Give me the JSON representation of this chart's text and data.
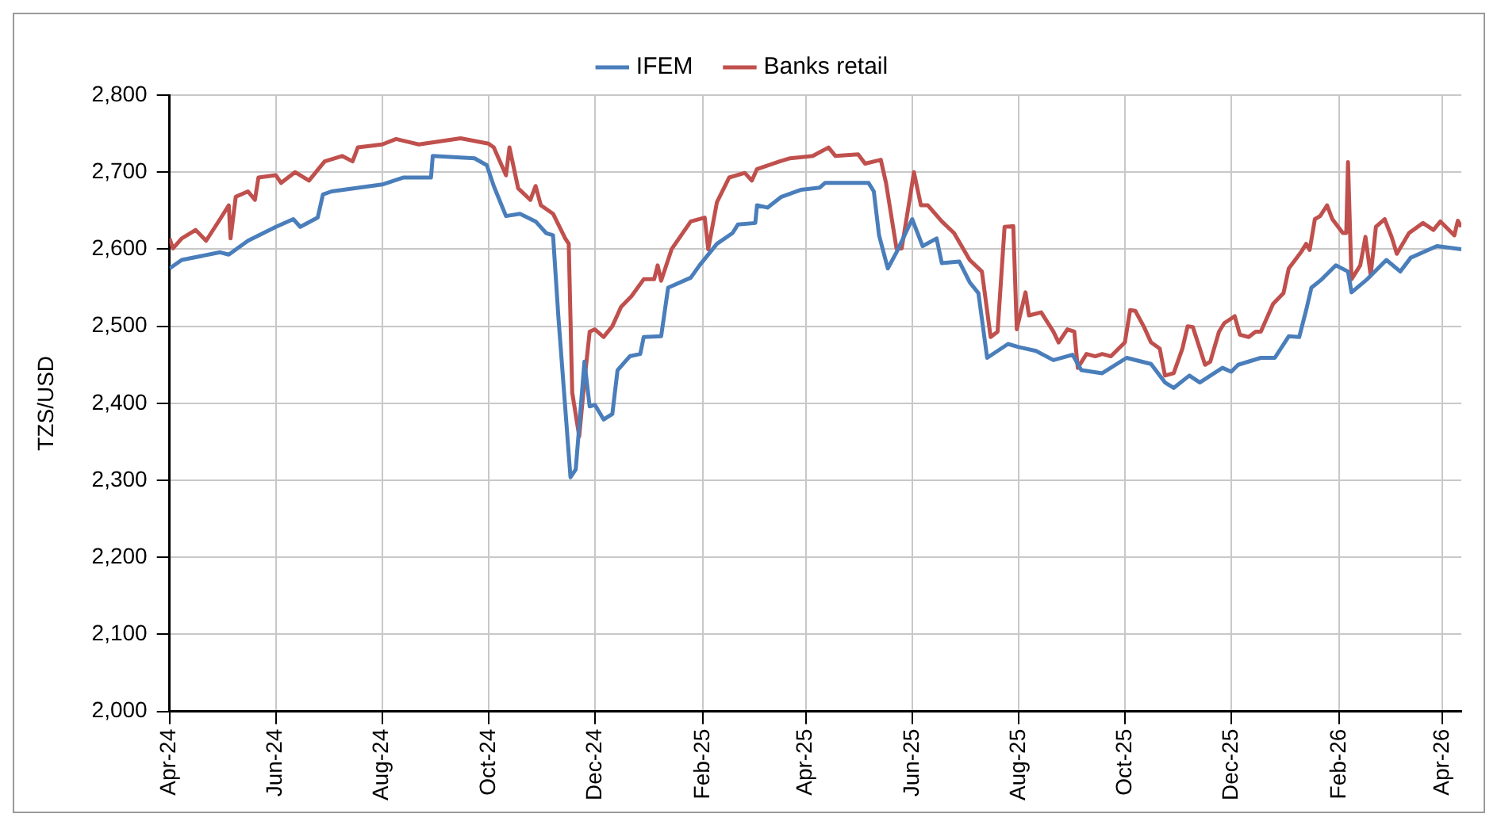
{
  "chart_data": {
    "type": "line",
    "ylabel": "TZS/USD",
    "legend": "top",
    "grid": true,
    "marker": "none",
    "line_style": "solid",
    "xlim": [
      "2024-04-01",
      "2026-04-12"
    ],
    "xticks": [
      {
        "value": "2024-04-01",
        "label": "Apr-24"
      },
      {
        "value": "2024-06-01",
        "label": "Jun-24"
      },
      {
        "value": "2024-08-01",
        "label": "Aug-24"
      },
      {
        "value": "2024-10-01",
        "label": "Oct-24"
      },
      {
        "value": "2024-12-01",
        "label": "Dec-24"
      },
      {
        "value": "2025-02-01",
        "label": "Feb-25"
      },
      {
        "value": "2025-04-01",
        "label": "Apr-25"
      },
      {
        "value": "2025-06-01",
        "label": "Jun-25"
      },
      {
        "value": "2025-08-01",
        "label": "Aug-25"
      },
      {
        "value": "2025-10-01",
        "label": "Oct-25"
      },
      {
        "value": "2025-12-01",
        "label": "Dec-25"
      },
      {
        "value": "2026-02-01",
        "label": "Feb-26"
      },
      {
        "value": "2026-04-01",
        "label": "Apr-26"
      }
    ],
    "ylim": [
      2000,
      2800
    ],
    "yticks": [
      {
        "value": 2000,
        "label": "2,000"
      },
      {
        "value": 2100,
        "label": "2,100"
      },
      {
        "value": 2200,
        "label": "2,200"
      },
      {
        "value": 2300,
        "label": "2,300"
      },
      {
        "value": 2400,
        "label": "2,400"
      },
      {
        "value": 2500,
        "label": "2,500"
      },
      {
        "value": 2600,
        "label": "2,600"
      },
      {
        "value": 2700,
        "label": "2,700"
      },
      {
        "value": 2800,
        "label": "2,800"
      }
    ],
    "series": [
      {
        "name": "IFEM",
        "color": "#4a7ebb",
        "x": [
          "2024-04-01",
          "2024-04-08",
          "2024-04-30",
          "2024-05-05",
          "2024-05-16",
          "2024-06-01",
          "2024-06-11",
          "2024-06-15",
          "2024-06-25",
          "2024-06-28",
          "2024-07-03",
          "2024-08-01",
          "2024-08-13",
          "2024-08-29",
          "2024-08-30",
          "2024-09-23",
          "2024-09-30",
          "2024-10-04",
          "2024-10-11",
          "2024-10-19",
          "2024-10-28",
          "2024-11-03",
          "2024-11-07",
          "2024-11-10",
          "2024-11-17",
          "2024-11-20",
          "2024-11-25",
          "2024-11-28",
          "2024-12-01",
          "2024-12-06",
          "2024-12-11",
          "2024-12-14",
          "2024-12-21",
          "2024-12-27",
          "2024-12-29",
          "2025-01-08",
          "2025-01-12",
          "2025-01-25",
          "2025-01-30",
          "2025-02-09",
          "2025-02-18",
          "2025-02-21",
          "2025-03-03",
          "2025-03-04",
          "2025-03-10",
          "2025-03-18",
          "2025-03-29",
          "2025-04-09",
          "2025-04-12",
          "2025-05-07",
          "2025-05-10",
          "2025-05-13",
          "2025-05-18",
          "2025-05-23",
          "2025-06-01",
          "2025-06-07",
          "2025-06-15",
          "2025-06-18",
          "2025-06-28",
          "2025-07-04",
          "2025-07-09",
          "2025-07-14",
          "2025-07-26",
          "2025-08-01",
          "2025-08-11",
          "2025-08-21",
          "2025-09-01",
          "2025-09-06",
          "2025-09-18",
          "2025-10-02",
          "2025-10-16",
          "2025-10-24",
          "2025-10-29",
          "2025-11-07",
          "2025-11-13",
          "2025-11-26",
          "2025-12-01",
          "2025-12-05",
          "2025-12-18",
          "2025-12-26",
          "2026-01-03",
          "2026-01-09",
          "2026-01-13",
          "2026-01-16",
          "2026-01-22",
          "2026-01-30",
          "2026-02-06",
          "2026-02-08",
          "2026-02-17",
          "2026-02-28",
          "2026-03-08",
          "2026-03-14",
          "2026-03-29",
          "2026-04-12"
        ],
        "values": [
          2575,
          2586,
          2596,
          2593,
          2611,
          2629,
          2639,
          2629,
          2641,
          2671,
          2675,
          2684,
          2693,
          2693,
          2721,
          2718,
          2709,
          2682,
          2643,
          2646,
          2636,
          2621,
          2618,
          2514,
          2304,
          2314,
          2454,
          2396,
          2398,
          2379,
          2386,
          2443,
          2461,
          2464,
          2486,
          2487,
          2550,
          2563,
          2579,
          2607,
          2621,
          2632,
          2634,
          2657,
          2654,
          2668,
          2677,
          2680,
          2686,
          2686,
          2675,
          2618,
          2575,
          2596,
          2639,
          2604,
          2614,
          2582,
          2584,
          2557,
          2543,
          2459,
          2477,
          2473,
          2468,
          2456,
          2463,
          2443,
          2439,
          2459,
          2451,
          2427,
          2420,
          2436,
          2427,
          2446,
          2441,
          2450,
          2459,
          2459,
          2487,
          2486,
          2521,
          2550,
          2561,
          2579,
          2571,
          2544,
          2561,
          2586,
          2571,
          2589,
          2604,
          2600
        ]
      },
      {
        "name": "Banks retail",
        "color": "#c0504d",
        "x": [
          "2024-04-01",
          "2024-04-03",
          "2024-04-08",
          "2024-04-16",
          "2024-04-22",
          "2024-04-30",
          "2024-05-05",
          "2024-05-06",
          "2024-05-09",
          "2024-05-16",
          "2024-05-20",
          "2024-05-22",
          "2024-06-01",
          "2024-06-04",
          "2024-06-12",
          "2024-06-20",
          "2024-06-29",
          "2024-07-09",
          "2024-07-15",
          "2024-07-18",
          "2024-08-01",
          "2024-08-09",
          "2024-08-22",
          "2024-09-15",
          "2024-10-01",
          "2024-10-04",
          "2024-10-11",
          "2024-10-13",
          "2024-10-18",
          "2024-10-25",
          "2024-10-28",
          "2024-10-31",
          "2024-11-07",
          "2024-11-14",
          "2024-11-16",
          "2024-11-18",
          "2024-11-22",
          "2024-11-25",
          "2024-11-28",
          "2024-12-01",
          "2024-12-06",
          "2024-12-11",
          "2024-12-16",
          "2024-12-22",
          "2024-12-29",
          "2025-01-04",
          "2025-01-06",
          "2025-01-08",
          "2025-01-14",
          "2025-01-25",
          "2025-02-02",
          "2025-02-04",
          "2025-02-09",
          "2025-02-16",
          "2025-02-25",
          "2025-03-01",
          "2025-03-04",
          "2025-03-17",
          "2025-03-23",
          "2025-04-05",
          "2025-04-14",
          "2025-04-18",
          "2025-05-01",
          "2025-05-05",
          "2025-05-14",
          "2025-05-17",
          "2025-05-23",
          "2025-05-26",
          "2025-05-31",
          "2025-06-02",
          "2025-06-06",
          "2025-06-10",
          "2025-06-18",
          "2025-06-25",
          "2025-07-04",
          "2025-07-11",
          "2025-07-16",
          "2025-07-20",
          "2025-07-24",
          "2025-07-29",
          "2025-07-31",
          "2025-08-05",
          "2025-08-07",
          "2025-08-14",
          "2025-08-21",
          "2025-08-24",
          "2025-08-29",
          "2025-09-02",
          "2025-09-04",
          "2025-09-09",
          "2025-09-14",
          "2025-09-18",
          "2025-09-23",
          "2025-10-01",
          "2025-10-04",
          "2025-10-07",
          "2025-10-12",
          "2025-10-16",
          "2025-10-21",
          "2025-10-24",
          "2025-10-29",
          "2025-11-03",
          "2025-11-06",
          "2025-11-09",
          "2025-11-16",
          "2025-11-19",
          "2025-11-24",
          "2025-11-27",
          "2025-12-03",
          "2025-12-06",
          "2025-12-11",
          "2025-12-15",
          "2025-12-18",
          "2025-12-25",
          "2025-12-31",
          "2026-01-03",
          "2026-01-10",
          "2026-01-13",
          "2026-01-15",
          "2026-01-18",
          "2026-01-21",
          "2026-01-25",
          "2026-01-28",
          "2026-02-03",
          "2026-02-05",
          "2026-02-06",
          "2026-02-08",
          "2026-02-13",
          "2026-02-16",
          "2026-02-19",
          "2026-02-22",
          "2026-02-27",
          "2026-03-03",
          "2026-03-06",
          "2026-03-13",
          "2026-03-21",
          "2026-03-27",
          "2026-03-31",
          "2026-04-08",
          "2026-04-10",
          "2026-04-12"
        ],
        "values": [
          2614,
          2601,
          2614,
          2625,
          2611,
          2639,
          2657,
          2614,
          2668,
          2675,
          2664,
          2693,
          2696,
          2686,
          2700,
          2689,
          2714,
          2721,
          2714,
          2732,
          2736,
          2743,
          2736,
          2744,
          2737,
          2732,
          2696,
          2732,
          2679,
          2664,
          2682,
          2657,
          2646,
          2614,
          2607,
          2414,
          2357,
          2429,
          2493,
          2496,
          2486,
          2500,
          2525,
          2539,
          2561,
          2561,
          2579,
          2559,
          2600,
          2636,
          2641,
          2600,
          2661,
          2693,
          2699,
          2689,
          2704,
          2714,
          2718,
          2721,
          2732,
          2721,
          2723,
          2711,
          2716,
          2686,
          2601,
          2601,
          2671,
          2700,
          2657,
          2657,
          2636,
          2621,
          2586,
          2571,
          2486,
          2493,
          2629,
          2630,
          2496,
          2544,
          2514,
          2518,
          2493,
          2479,
          2496,
          2493,
          2446,
          2464,
          2461,
          2464,
          2461,
          2479,
          2521,
          2520,
          2499,
          2479,
          2471,
          2436,
          2439,
          2471,
          2500,
          2499,
          2450,
          2454,
          2493,
          2504,
          2513,
          2489,
          2486,
          2493,
          2493,
          2529,
          2543,
          2575,
          2596,
          2607,
          2599,
          2639,
          2643,
          2657,
          2639,
          2621,
          2621,
          2713,
          2561,
          2579,
          2616,
          2566,
          2629,
          2639,
          2616,
          2594,
          2621,
          2634,
          2625,
          2636,
          2618,
          2637,
          2629
        ]
      }
    ]
  }
}
